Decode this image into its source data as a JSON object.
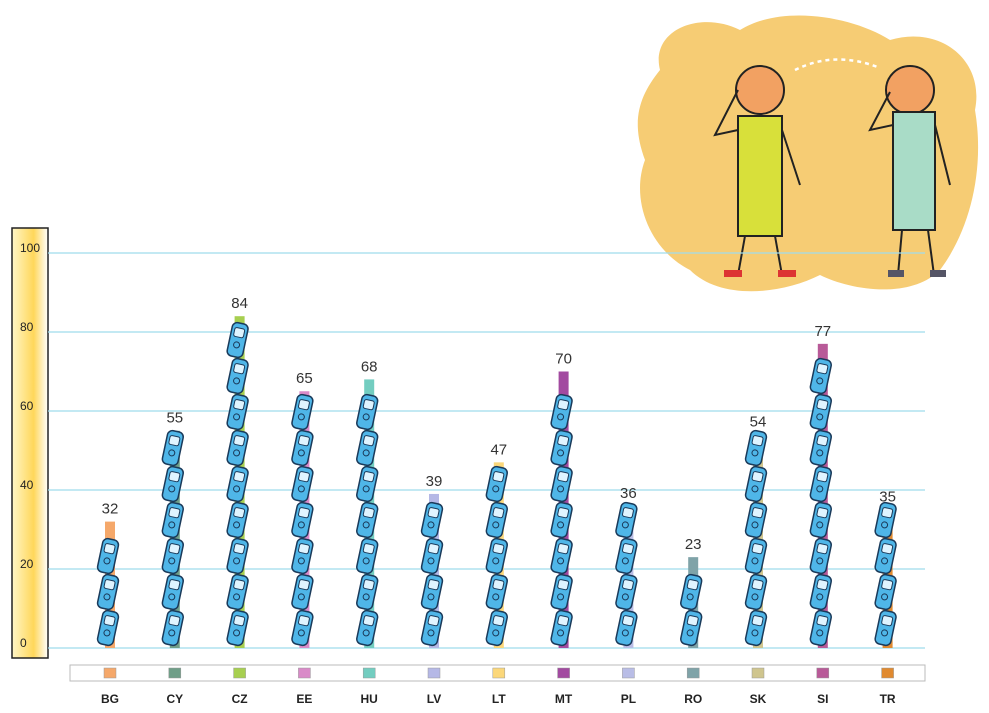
{
  "chart_data": {
    "type": "bar",
    "categories": [
      "BG",
      "CY",
      "CZ",
      "EE",
      "HU",
      "LV",
      "LT",
      "MT",
      "PL",
      "RO",
      "SK",
      "SI",
      "TR"
    ],
    "values": [
      32,
      55,
      84,
      65,
      68,
      39,
      47,
      70,
      36,
      23,
      54,
      77,
      35
    ],
    "colors": [
      "#f5a86a",
      "#6f9e88",
      "#a7cf50",
      "#d98ac8",
      "#73cdc0",
      "#b5b8e6",
      "#fbd77a",
      "#a24aa0",
      "#b9bde6",
      "#7fa3a8",
      "#cfc58e",
      "#b85a98",
      "#e08a30"
    ],
    "ylim": [
      0,
      100
    ],
    "yticks": [
      0,
      20,
      40,
      60,
      80,
      100
    ],
    "grid": true
  }
}
